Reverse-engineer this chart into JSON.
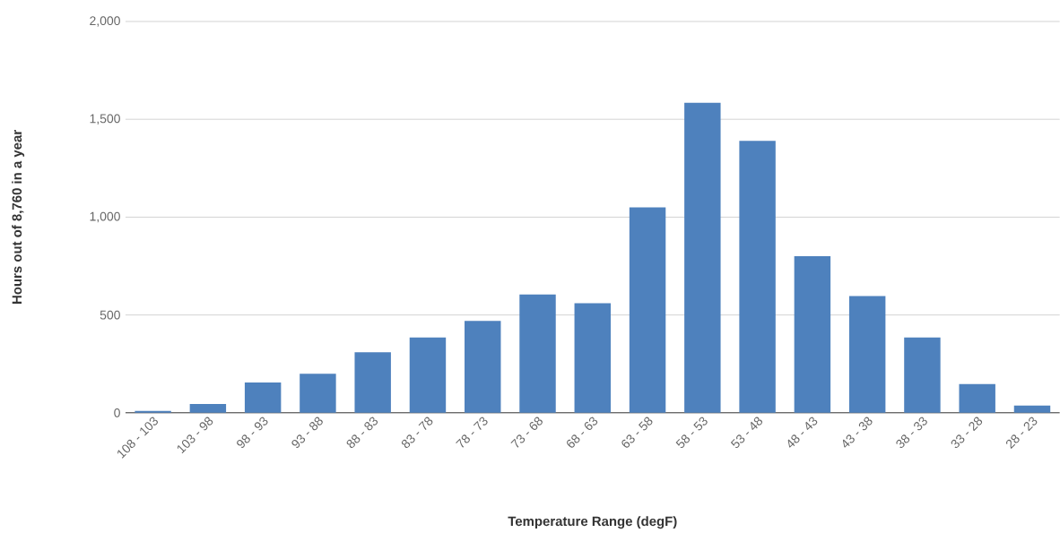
{
  "chart_data": {
    "type": "bar",
    "xlabel": "Temperature Range (degF)",
    "ylabel": "Hours out of 8,760 in a year",
    "categories": [
      "108 - 103",
      "103 - 98",
      "98 - 93",
      "93 - 88",
      "88 - 83",
      "83 - 78",
      "78 - 73",
      "73 - 68",
      "68 - 63",
      "63 - 58",
      "58 - 53",
      "53 - 48",
      "48 - 43",
      "43 - 38",
      "38 - 33",
      "33 - 28",
      "28 - 23"
    ],
    "values": [
      10,
      45,
      155,
      200,
      310,
      385,
      470,
      605,
      560,
      1050,
      1585,
      1390,
      800,
      597,
      385,
      147,
      37
    ],
    "color": "#4e81bd",
    "ylim": [
      0,
      2000
    ],
    "yticks": [
      0,
      500,
      {
        "value": 1000,
        "label": "1,000"
      },
      {
        "value": 1500,
        "label": "1,500"
      },
      {
        "value": 2000,
        "label": "2,000"
      }
    ],
    "grid": "y"
  }
}
